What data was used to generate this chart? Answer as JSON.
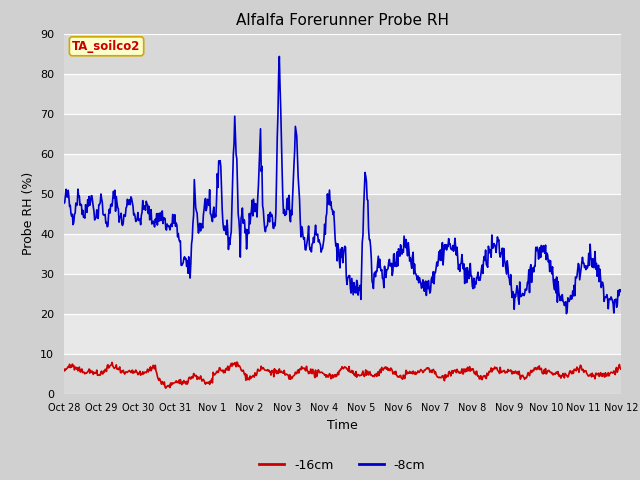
{
  "title": "Alfalfa Forerunner Probe RH",
  "xlabel": "Time",
  "ylabel": "Probe RH (%)",
  "ylim": [
    0,
    90
  ],
  "yticks": [
    0,
    10,
    20,
    30,
    40,
    50,
    60,
    70,
    80,
    90
  ],
  "annotation_text": "TA_soilco2",
  "annotation_bg": "#ffffcc",
  "annotation_border": "#ccaa00",
  "annotation_text_color": "#cc0000",
  "fig_bg": "#d0d0d0",
  "plot_bg": "#e8e8e8",
  "line_blue_color": "#0000cc",
  "line_red_color": "#cc0000",
  "legend_labels": [
    "-16cm",
    "-8cm"
  ],
  "legend_colors": [
    "#cc0000",
    "#0000cc"
  ],
  "xtick_labels": [
    "Oct 28",
    "Oct 29",
    "Oct 30",
    "Oct 31",
    "Nov 1",
    "Nov 2",
    "Nov 3",
    "Nov 4",
    "Nov 5",
    "Nov 6",
    "Nov 7",
    "Nov 8",
    "Nov 9",
    "Nov 10",
    "Nov 11",
    "Nov 12"
  ],
  "grid_color": "#ffffff",
  "stripe_color": "#d8d8d8"
}
